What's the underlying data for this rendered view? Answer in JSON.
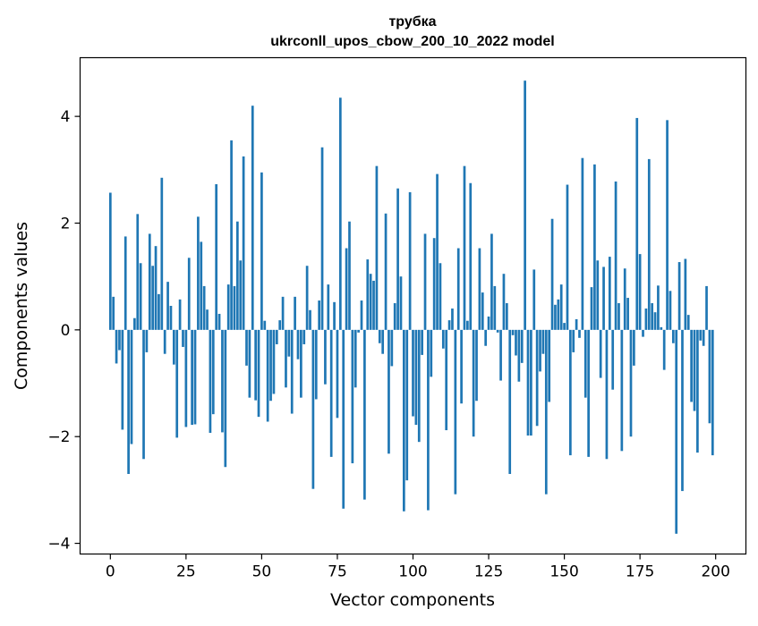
{
  "chart_data": {
    "type": "bar",
    "title": "трубка",
    "subtitle": "ukrconll_upos_cbow_200_10_2022 model",
    "xlabel": "Vector components",
    "ylabel": "Components values",
    "xlim": [
      -10,
      210
    ],
    "ylim": [
      -4.2,
      5.1
    ],
    "xticks": [
      0,
      25,
      50,
      75,
      100,
      125,
      150,
      175,
      200
    ],
    "yticks": [
      -4,
      -2,
      0,
      2,
      4
    ],
    "ytick_labels": [
      "−4",
      "−2",
      "0",
      "2",
      "4"
    ],
    "grid": false,
    "color": "#1f77b4",
    "values": [
      2.57,
      0.62,
      -0.63,
      -0.38,
      -1.87,
      1.75,
      -2.7,
      -2.14,
      0.22,
      2.17,
      1.25,
      -2.42,
      -0.42,
      1.8,
      1.2,
      1.57,
      0.67,
      2.85,
      -0.45,
      0.9,
      0.45,
      -0.65,
      -2.02,
      0.57,
      -0.32,
      -1.82,
      1.35,
      -1.78,
      -1.77,
      2.12,
      1.65,
      0.82,
      0.38,
      -1.93,
      -1.58,
      2.73,
      0.3,
      -1.92,
      -2.57,
      0.85,
      3.55,
      0.82,
      2.03,
      1.3,
      3.25,
      -0.67,
      -1.27,
      4.2,
      -1.32,
      -1.63,
      2.95,
      0.17,
      -1.72,
      -1.33,
      -1.2,
      -0.27,
      0.18,
      0.62,
      -1.08,
      -0.5,
      -1.57,
      0.62,
      -0.55,
      -1.27,
      -0.27,
      1.2,
      0.37,
      -2.98,
      -1.3,
      0.55,
      3.42,
      -1.02,
      0.85,
      -2.38,
      0.52,
      -1.65,
      4.35,
      -3.35,
      1.53,
      2.03,
      -2.5,
      -1.08,
      -0.05,
      0.55,
      -3.18,
      1.32,
      1.05,
      0.92,
      3.07,
      -0.25,
      -0.45,
      2.18,
      -2.32,
      -0.68,
      0.5,
      2.65,
      1.0,
      -3.4,
      -2.82,
      2.58,
      -1.62,
      -1.78,
      -2.1,
      -0.47,
      1.8,
      -3.38,
      -0.88,
      1.72,
      2.92,
      1.25,
      -0.35,
      -1.88,
      0.18,
      0.4,
      -3.08,
      1.53,
      -1.38,
      3.07,
      0.17,
      2.75,
      -2.0,
      -1.33,
      1.53,
      0.7,
      -0.3,
      0.25,
      1.8,
      0.82,
      -0.05,
      -0.95,
      1.05,
      0.5,
      -2.7,
      -0.1,
      -0.48,
      -0.97,
      -0.62,
      4.67,
      -1.98,
      -1.98,
      1.13,
      -1.8,
      -0.78,
      -0.45,
      -3.08,
      -1.35,
      2.08,
      0.47,
      0.57,
      0.85,
      0.13,
      2.72,
      -2.35,
      -0.42,
      0.2,
      -0.15,
      3.22,
      -1.27,
      -2.38,
      0.8,
      3.1,
      1.3,
      -0.9,
      1.18,
      -2.42,
      1.37,
      -1.12,
      2.78,
      0.5,
      -2.27,
      1.15,
      0.6,
      -2.0,
      -0.67,
      3.97,
      1.42,
      -0.13,
      0.4,
      3.2,
      0.5,
      0.33,
      0.83,
      0.05,
      -0.75,
      3.93,
      0.73,
      -0.25,
      -3.82,
      1.27,
      -3.02,
      1.33,
      0.28,
      -1.35,
      -1.52,
      -2.3,
      -0.2,
      -0.3,
      0.82,
      -1.75,
      -2.35
    ]
  }
}
